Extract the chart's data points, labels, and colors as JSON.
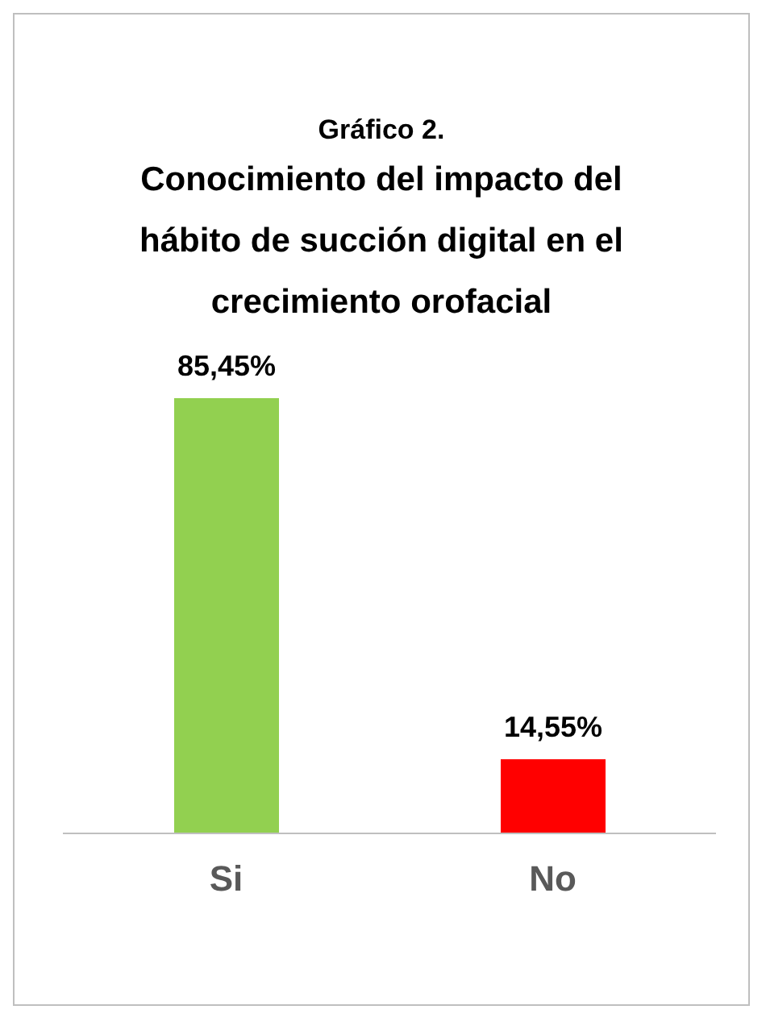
{
  "chart_data": {
    "type": "bar",
    "title": "Gráfico 2.",
    "subtitle": "Conocimiento del impacto del hábito de succión digital en el crecimiento orofacial",
    "categories": [
      "Si",
      "No"
    ],
    "values": [
      85.45,
      14.55
    ],
    "colors": [
      "#92d050",
      "#ff0000"
    ],
    "value_labels": [
      "85,45%",
      "14,55%"
    ]
  }
}
